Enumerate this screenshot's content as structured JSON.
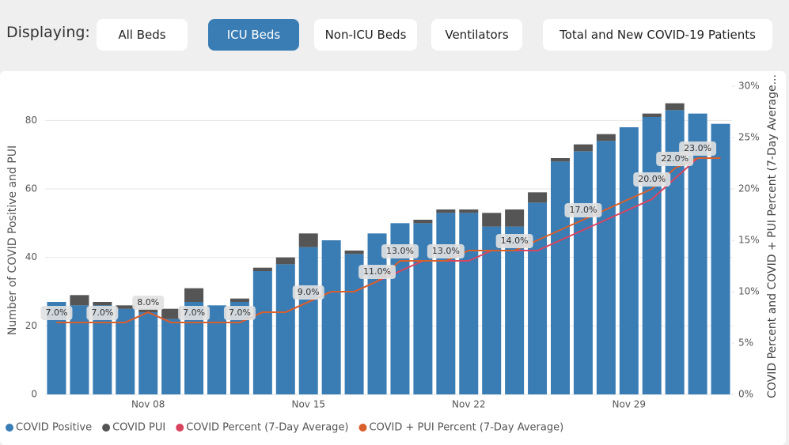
{
  "header": {
    "label": "Displaying:",
    "buttons": [
      "All Beds",
      "ICU Beds",
      "Non-ICU Beds",
      "Ventilators",
      "Total and New COVID-19 Patients"
    ],
    "active": 1
  },
  "chart_data": {
    "type": "bar",
    "stacked": true,
    "ylabel": "Number of COVID Positive and PUI",
    "y2label": "COVID Percent and COVID + PUI Percent (7-Day Average...",
    "categories": [
      null,
      null,
      null,
      null,
      "Nov 08",
      null,
      null,
      null,
      null,
      null,
      null,
      "Nov 15",
      null,
      null,
      null,
      null,
      null,
      null,
      "Nov 22",
      null,
      null,
      null,
      null,
      null,
      null,
      "Nov 29",
      null,
      null,
      null,
      null
    ],
    "ylim": [
      0,
      90
    ],
    "yticks": [
      0,
      20,
      40,
      60,
      80
    ],
    "y2lim": [
      0,
      30
    ],
    "y2ticks": [
      {
        "value": 0,
        "label": "0%"
      },
      {
        "value": 5,
        "label": "5%"
      },
      {
        "value": 10,
        "label": "10%"
      },
      {
        "value": 15,
        "label": "15%"
      },
      {
        "value": 20,
        "label": "20%"
      },
      {
        "value": 25,
        "label": "25%"
      },
      {
        "value": 30,
        "label": "30%"
      }
    ],
    "grid": true,
    "series": [
      {
        "name": "COVID Positive",
        "color": "#3a7db5",
        "values": [
          27,
          26,
          26,
          25,
          24,
          22,
          27,
          26,
          27,
          36,
          38,
          43,
          45,
          41,
          47,
          50,
          50,
          53,
          53,
          49,
          49,
          56,
          68,
          71,
          74,
          78,
          81,
          83,
          82,
          79
        ]
      },
      {
        "name": "COVID PUI",
        "color": "#555555",
        "values": [
          0,
          3,
          1,
          1,
          1,
          3,
          4,
          0,
          1,
          1,
          2,
          4,
          0,
          1,
          0,
          0,
          1,
          1,
          1,
          4,
          5,
          3,
          1,
          2,
          2,
          0,
          1,
          2,
          0,
          0
        ]
      },
      {
        "name": "COVID Percent (7-Day Average)",
        "color": "#d9455f",
        "type": "line",
        "axis": "y2",
        "values": [
          7,
          7,
          7,
          7,
          8,
          7,
          7,
          7,
          7,
          8,
          8,
          9,
          10,
          10,
          11,
          12,
          13,
          13,
          13,
          14,
          14,
          14,
          15,
          16,
          17,
          18,
          19,
          21,
          23,
          23
        ]
      },
      {
        "name": "COVID + PUI Percent (7-Day Average)",
        "color": "#d95f2b",
        "type": "line",
        "axis": "y2",
        "values": [
          7,
          7,
          7,
          7,
          8,
          7,
          7,
          7,
          7,
          8,
          8,
          9,
          10,
          10,
          11,
          13,
          13,
          13,
          14,
          14,
          14,
          15,
          16,
          17,
          18,
          19,
          20,
          22,
          23,
          23
        ],
        "value_labels": [
          "7.0%",
          null,
          "7.0%",
          null,
          "8.0%",
          null,
          "7.0%",
          null,
          "7.0%",
          null,
          null,
          "9.0%",
          null,
          null,
          "11.0%",
          "13.0%",
          null,
          "13.0%",
          null,
          null,
          "14.0%",
          null,
          null,
          "17.0%",
          null,
          null,
          "20.0%",
          "22.0%",
          "23.0%",
          null
        ]
      }
    ]
  }
}
